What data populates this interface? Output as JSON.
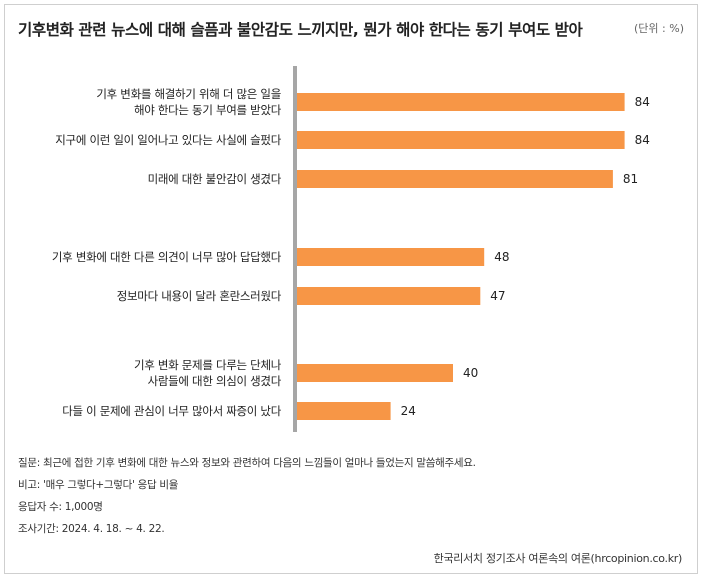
{
  "title": "기후변화 관련 뉴스에 대해 슬픔과 불안감도 느끼지만, 뭔가 해야 한다는 동기 부여도 받아",
  "unit": "(단위 : %)",
  "colors": {
    "bar": "#F79646",
    "axis": "#a6a6a6"
  },
  "chart_data": {
    "type": "bar",
    "orientation": "horizontal",
    "groups": [
      [
        0,
        1,
        2
      ],
      [
        3,
        4
      ],
      [
        5,
        6
      ]
    ],
    "categories": [
      [
        "기후 변화를 해결하기 위해 더 많은 일을",
        "해야 한다는 동기 부여를 받았다"
      ],
      [
        "지구에 이런 일이 일어나고 있다는 사실에 슬펐다"
      ],
      [
        "미래에 대한 불안감이 생겼다"
      ],
      [
        "기후 변화에 대한 다른 의견이 너무 많아 답답했다"
      ],
      [
        "정보마다 내용이 달라 혼란스러웠다"
      ],
      [
        "기후 변화 문제를 다루는 단체나",
        "사람들에 대한 의심이 생겼다"
      ],
      [
        "다들 이 문제에 관심이 너무 많아서 짜증이 났다"
      ]
    ],
    "values": [
      84,
      84,
      81,
      48,
      47,
      40,
      24
    ],
    "xlim": [
      0,
      100
    ],
    "grid": false,
    "legend": "none"
  },
  "footer": {
    "question": "질문: 최근에 접한 기후 변화에 대한 뉴스와 정보와 관련하여 다음의 느낌들이 얼마나 들었는지 말씀해주세요.",
    "base": "비고: '매우 그렇다+그렇다' 응답 비율",
    "respondents": "응답자 수: 1,000명",
    "period": "조사기간: 2024. 4. 18. ~ 4. 22."
  },
  "source": "한국리서치 정기조사 여론속의 여론(hrcopinion.co.kr)"
}
